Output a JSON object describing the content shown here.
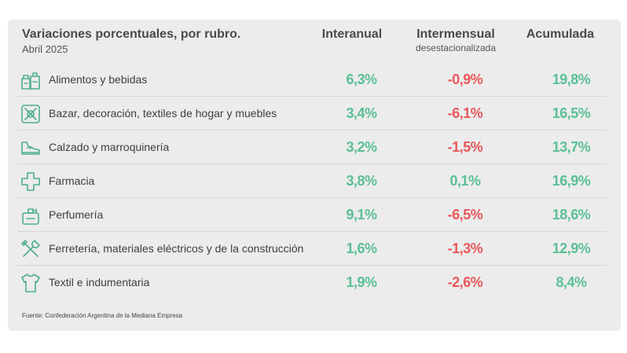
{
  "header": {
    "title": "Variaciones porcentuales, por rubro.",
    "subtitle": "Abril 2025",
    "col_interanual": "Interanual",
    "col_intermensual": "Intermensual",
    "col_intermensual_sub": "desestacionalizada",
    "col_acumulada": "Acumulada"
  },
  "rows": [
    {
      "label": "Alimentos y bebidas",
      "icon": "groceries-icon",
      "interanual": "6,3%",
      "intermensual": "-0,9%",
      "acumulada": "19,8%"
    },
    {
      "label": "Bazar, decoración, textiles de hogar y muebles",
      "icon": "bazaar-icon",
      "interanual": "3,4%",
      "intermensual": "-6,1%",
      "acumulada": "16,5%"
    },
    {
      "label": "Calzado y marroquinería",
      "icon": "shoe-icon",
      "interanual": "3,2%",
      "intermensual": "-1,5%",
      "acumulada": "13,7%"
    },
    {
      "label": "Farmacia",
      "icon": "pharmacy-cross-icon",
      "interanual": "3,8%",
      "intermensual": "0,1%",
      "acumulada": "16,9%"
    },
    {
      "label": "Perfumería",
      "icon": "perfume-icon",
      "interanual": "9,1%",
      "intermensual": "-6,5%",
      "acumulada": "18,6%"
    },
    {
      "label": "Ferretería, materiales eléctricos y de la construcción",
      "icon": "tools-icon",
      "interanual": "1,6%",
      "intermensual": "-1,3%",
      "acumulada": "12,9%"
    },
    {
      "label": "Textil e indumentaria",
      "icon": "tshirt-icon",
      "interanual": "1,9%",
      "intermensual": "-2,6%",
      "acumulada": "8,4%"
    }
  ],
  "source": "Fuente: Confederación Argentina de la Mediana Empresa",
  "colors": {
    "positive": "#5bbf95",
    "negative": "#e8575b",
    "icon": "#4fae8c"
  }
}
